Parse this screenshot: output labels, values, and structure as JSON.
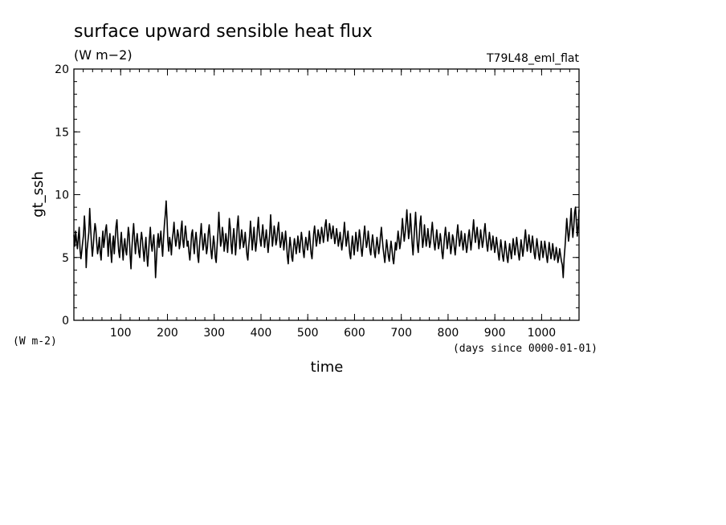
{
  "chart_data": {
    "type": "line",
    "title": "surface upward sensible heat flux",
    "subtitle": "(W m−2)",
    "experiment": "T79L48_eml_flat",
    "ylabel": "gt_ssh",
    "yunits": "(W m-2)",
    "xlabel": "time",
    "xunits": "(days since 0000-01-01)",
    "xlim": [
      0,
      1080
    ],
    "ylim": [
      0,
      20
    ],
    "xticks": [
      100,
      200,
      300,
      400,
      500,
      600,
      700,
      800,
      900,
      1000
    ],
    "yticks": [
      0,
      5,
      10,
      15,
      20
    ],
    "xtick_labels": [
      "100",
      "200",
      "300",
      "400",
      "500",
      "600",
      "700",
      "800",
      "900",
      "1000"
    ],
    "ytick_labels": [
      "0",
      "5",
      "10",
      "15",
      "20"
    ],
    "grid": false,
    "series": [
      {
        "values": [
          6.8,
          5.9,
          7.1,
          6.3,
          5.7,
          6.6,
          7.4,
          5.6,
          4.9,
          5.5,
          6.2,
          6.8,
          8.3,
          7.1,
          4.2,
          5.6,
          6.3,
          7.0,
          8.9,
          7.4,
          6.1,
          5.1,
          5.9,
          6.9,
          7.7,
          7.3,
          6.2,
          5.3,
          5.8,
          6.6,
          5.4,
          4.8,
          6.2,
          7.1,
          5.8,
          6.4,
          7.2,
          7.6,
          6.5,
          5.1,
          6.3,
          6.9,
          5.5,
          4.6,
          6.1,
          6.7,
          5.3,
          6.4,
          7.5,
          8.0,
          6.6,
          5.5,
          5.0,
          6.2,
          7.0,
          5.8,
          4.8,
          6.0,
          6.5,
          5.6,
          5.2,
          6.3,
          7.4,
          6.8,
          5.2,
          4.1,
          5.7,
          6.8,
          7.7,
          6.5,
          5.3,
          6.2,
          6.9,
          6.1,
          5.4,
          5.0,
          6.3,
          7.0,
          6.4,
          5.5,
          4.7,
          5.8,
          6.6,
          5.2,
          4.3,
          5.4,
          6.5,
          7.4,
          6.1,
          5.5,
          6.3,
          6.8,
          5.6,
          3.4,
          4.8,
          6.2,
          6.9,
          5.8,
          6.4,
          7.1,
          6.0,
          5.1,
          6.5,
          7.6,
          8.4,
          9.5,
          8.0,
          6.3,
          5.5,
          6.6,
          6.1,
          5.2,
          6.4,
          7.0,
          7.8,
          6.6,
          5.9,
          6.4,
          7.2,
          6.8,
          5.7,
          6.1,
          7.3,
          7.9,
          6.4,
          5.8,
          6.7,
          7.5,
          6.8,
          5.9,
          6.3,
          5.4,
          4.8,
          5.7,
          6.9,
          7.2,
          6.1,
          5.3,
          6.4,
          7.0,
          6.3,
          5.1,
          4.6,
          5.9,
          6.8,
          7.7,
          6.5,
          5.6,
          6.1,
          6.9,
          6.2,
          5.3,
          5.8,
          7.0,
          7.6,
          6.6,
          5.5,
          4.9,
          5.8,
          6.7,
          6.1,
          5.0,
          4.6,
          5.9,
          7.0,
          8.6,
          7.2,
          5.9,
          6.3,
          7.4,
          6.8,
          5.5,
          6.1,
          6.9,
          6.3,
          5.4,
          6.6,
          8.1,
          7.4,
          6.0,
          5.3,
          6.5,
          7.3,
          6.4,
          5.2,
          6.2,
          7.6,
          8.3,
          6.9,
          5.7,
          6.4,
          7.2,
          6.6,
          5.8,
          6.2,
          7.0,
          6.1,
          5.2,
          4.8,
          5.9,
          6.7,
          7.9,
          6.8,
          5.6,
          6.5,
          7.4,
          6.3,
          5.5,
          6.2,
          7.3,
          8.2,
          7.0,
          6.4,
          5.9,
          6.8,
          7.6,
          6.7,
          5.8,
          6.5,
          7.2,
          6.3,
          5.4,
          6.1,
          7.0,
          8.4,
          7.1,
          5.9,
          6.6,
          7.5,
          6.9,
          6.0,
          6.4,
          7.3,
          7.8,
          6.6,
          5.8,
          6.2,
          7.0,
          6.5,
          5.6,
          6.3,
          7.1,
          6.2,
          5.1,
          4.5,
          5.7,
          6.6,
          5.9,
          5.0,
          4.7,
          5.8,
          6.5,
          6.0,
          5.3,
          5.9,
          6.7,
          6.1,
          5.4,
          6.2,
          7.0,
          6.4,
          5.5,
          5.0,
          5.9,
          6.6,
          6.1,
          5.6,
          6.3,
          7.1,
          6.2,
          5.3,
          4.9,
          5.8,
          6.9,
          7.5,
          6.7,
          5.9,
          6.4,
          7.2,
          6.8,
          6.1,
          6.7,
          7.4,
          6.9,
          6.2,
          6.8,
          7.6,
          8.0,
          7.1,
          6.3,
          6.9,
          7.7,
          7.2,
          6.5,
          6.9,
          7.5,
          6.8,
          6.1,
          6.6,
          7.3,
          6.7,
          5.9,
          6.4,
          7.0,
          6.3,
          5.6,
          6.2,
          6.9,
          7.8,
          6.8,
          5.9,
          6.5,
          7.1,
          6.2,
          5.3,
          4.9,
          5.9,
          6.7,
          6.0,
          5.2,
          6.1,
          7.0,
          6.4,
          5.5,
          6.3,
          7.2,
          6.6,
          5.7,
          5.1,
          5.9,
          6.8,
          7.5,
          6.6,
          5.8,
          6.2,
          7.1,
          6.4,
          5.6,
          5.2,
          6.1,
          6.8,
          6.2,
          5.4,
          5.0,
          5.8,
          6.6,
          6.0,
          5.3,
          5.9,
          6.7,
          7.4,
          6.5,
          5.7,
          5.1,
          4.6,
          5.5,
          6.4,
          5.8,
          5.1,
          4.7,
          5.6,
          6.3,
          5.7,
          4.9,
          4.5,
          5.3,
          6.2,
          5.6,
          6.3,
          7.1,
          6.5,
          5.7,
          6.2,
          7.0,
          8.1,
          7.2,
          6.3,
          6.9,
          7.7,
          8.8,
          7.6,
          6.5,
          7.1,
          8.5,
          7.4,
          6.1,
          5.2,
          6.3,
          7.5,
          8.6,
          7.2,
          6.0,
          5.4,
          6.5,
          7.7,
          8.3,
          6.9,
          5.8,
          6.4,
          7.6,
          6.7,
          5.9,
          6.5,
          7.3,
          6.6,
          5.8,
          6.2,
          7.1,
          7.8,
          6.9,
          6.1,
          5.6,
          6.4,
          7.2,
          6.5,
          5.7,
          6.1,
          6.9,
          6.3,
          5.4,
          4.9,
          5.8,
          6.7,
          7.4,
          6.6,
          5.7,
          6.3,
          7.0,
          6.2,
          5.3,
          5.9,
          6.8,
          6.5,
          5.8,
          5.2,
          6.0,
          6.9,
          7.6,
          6.7,
          5.9,
          6.4,
          7.1,
          6.3,
          5.6,
          6.2,
          6.9,
          6.1,
          5.4,
          5.9,
          6.7,
          7.2,
          6.4,
          5.6,
          6.3,
          7.1,
          8.0,
          7.0,
          6.2,
          6.8,
          7.4,
          6.6,
          5.7,
          6.4,
          7.2,
          6.5,
          5.8,
          6.3,
          7.1,
          7.7,
          6.8,
          6.0,
          5.5,
          6.3,
          7.0,
          6.4,
          5.6,
          6.0,
          6.7,
          6.1,
          5.4,
          5.9,
          6.6,
          6.0,
          5.3,
          4.8,
          5.6,
          6.4,
          5.8,
          5.1,
          4.7,
          5.5,
          6.3,
          5.7,
          5.0,
          4.6,
          5.4,
          6.1,
          5.5,
          4.9,
          5.7,
          6.5,
          5.9,
          5.2,
          5.8,
          6.6,
          6.0,
          5.3,
          4.8,
          5.6,
          6.4,
          5.8,
          5.1,
          5.7,
          6.5,
          7.2,
          6.3,
          5.5,
          6.1,
          6.8,
          6.2,
          5.4,
          6.0,
          6.7,
          6.1,
          5.3,
          4.9,
          5.7,
          6.5,
          5.9,
          5.2,
          4.8,
          5.6,
          6.3,
          5.7,
          5.0,
          5.5,
          6.3,
          5.8,
          5.1,
          4.6,
          5.4,
          6.2,
          5.6,
          4.9,
          5.3,
          6.1,
          5.5,
          4.8,
          5.1,
          5.8,
          5.3,
          4.6,
          5.0,
          5.7,
          5.2,
          4.7,
          4.4,
          3.4,
          4.9,
          5.8,
          6.9,
          8.1,
          7.2,
          6.3,
          6.9,
          7.8,
          8.9,
          7.6,
          6.6,
          7.4,
          8.6,
          9.0,
          7.8,
          6.7,
          7.5,
          8.8
        ]
      }
    ]
  }
}
